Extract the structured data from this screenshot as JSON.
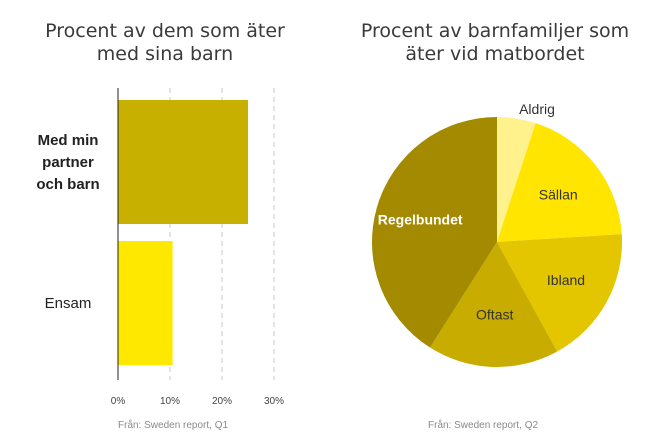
{
  "charts": {
    "left_title_line1": "Procent av dem som äter",
    "left_title_line2": "med sina barn",
    "right_title_line1": "Procent av barnfamiljer som",
    "right_title_line2": "äter vid matbordet",
    "left_source": "Från: Sweden report, Q1",
    "right_source": "Från: Sweden report, Q2"
  },
  "colors": {
    "bar_primary": "#c8b000",
    "bar_secondary": "#ffe800",
    "pie_regelbundet": "#a38a00",
    "pie_oftast": "#c8ac00",
    "pie_ibland": "#e3c600",
    "pie_sallan": "#ffe500",
    "pie_aldrig": "#fff28c"
  },
  "chart_data": [
    {
      "type": "bar",
      "orientation": "horizontal",
      "title": "Procent av dem som äter med sina barn",
      "categories": [
        "Med min partner och barn",
        "Ensam"
      ],
      "category_lines": [
        [
          "Med min",
          "partner",
          "och barn"
        ],
        [
          "Ensam"
        ]
      ],
      "values": [
        25,
        10.5
      ],
      "xlim": [
        0,
        30
      ],
      "xticks": [
        "0%",
        "10%",
        "20%",
        "30%"
      ],
      "grid": true,
      "source": "Från: Sweden report, Q1"
    },
    {
      "type": "pie",
      "title": "Procent av barnfamiljer som äter vid matbordet",
      "labels": [
        "Aldrig",
        "Sällan",
        "Ibland",
        "Oftast",
        "Regelbundet"
      ],
      "values": [
        5,
        19,
        18,
        17,
        41
      ],
      "source": "Från: Sweden report, Q2"
    }
  ]
}
